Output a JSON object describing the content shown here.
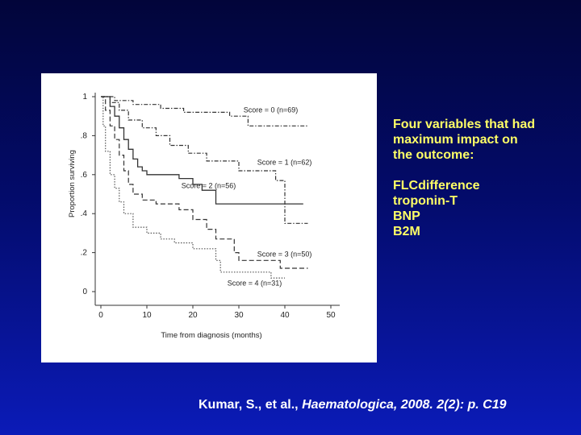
{
  "slide": {
    "text_block": {
      "heading_lines": [
        "Four variables that had",
        "maximum impact on",
        "the outcome:"
      ],
      "variables": [
        "FLCdifference",
        "troponin-T",
        "BNP",
        "B2M"
      ]
    },
    "citation": {
      "authors": "Kumar, S., et al.,",
      "journal_ref": "Haematologica, 2008. 2(2): p. C19"
    }
  },
  "chart_data": {
    "type": "line",
    "xlabel": "Time from diagnosis (months)",
    "ylabel": "Proportion surviving",
    "xlim": [
      0,
      50
    ],
    "ylim": [
      0,
      1
    ],
    "x_ticks": [
      "0",
      "10",
      "20",
      "30",
      "40",
      "50"
    ],
    "y_ticks": [
      "0",
      ".2",
      ".4",
      ".6",
      ".8",
      "1"
    ],
    "grid": false,
    "series": [
      {
        "name": "Score = 0 (n=69)",
        "style": "dash-dot",
        "color": "#333333",
        "points": [
          [
            0,
            1
          ],
          [
            3,
            1
          ],
          [
            3,
            0.98
          ],
          [
            7,
            0.98
          ],
          [
            7,
            0.96
          ],
          [
            13,
            0.96
          ],
          [
            13,
            0.94
          ],
          [
            18,
            0.94
          ],
          [
            18,
            0.92
          ],
          [
            28,
            0.92
          ],
          [
            28,
            0.9
          ],
          [
            32,
            0.9
          ],
          [
            32,
            0.85
          ],
          [
            45,
            0.85
          ]
        ]
      },
      {
        "name": "Score = 1 (n=62)",
        "style": "dash-dot",
        "color": "#333333",
        "points": [
          [
            0,
            1
          ],
          [
            2,
            1
          ],
          [
            2,
            0.97
          ],
          [
            4,
            0.97
          ],
          [
            4,
            0.93
          ],
          [
            6,
            0.93
          ],
          [
            6,
            0.88
          ],
          [
            9,
            0.88
          ],
          [
            9,
            0.84
          ],
          [
            12,
            0.84
          ],
          [
            12,
            0.8
          ],
          [
            15,
            0.8
          ],
          [
            15,
            0.75
          ],
          [
            19,
            0.75
          ],
          [
            19,
            0.71
          ],
          [
            23,
            0.71
          ],
          [
            23,
            0.67
          ],
          [
            30,
            0.67
          ],
          [
            30,
            0.62
          ],
          [
            38,
            0.62
          ],
          [
            38,
            0.57
          ],
          [
            40,
            0.57
          ],
          [
            40,
            0.35
          ],
          [
            45,
            0.35
          ]
        ]
      },
      {
        "name": "Score = 2 (n=56)",
        "style": "solid",
        "color": "#333333",
        "points": [
          [
            0,
            1
          ],
          [
            2,
            1
          ],
          [
            2,
            0.95
          ],
          [
            3,
            0.95
          ],
          [
            3,
            0.9
          ],
          [
            4,
            0.9
          ],
          [
            4,
            0.84
          ],
          [
            5,
            0.84
          ],
          [
            5,
            0.78
          ],
          [
            6,
            0.78
          ],
          [
            6,
            0.73
          ],
          [
            7,
            0.73
          ],
          [
            7,
            0.68
          ],
          [
            8,
            0.68
          ],
          [
            8,
            0.64
          ],
          [
            9,
            0.64
          ],
          [
            9,
            0.62
          ],
          [
            10,
            0.62
          ],
          [
            10,
            0.6
          ],
          [
            17,
            0.6
          ],
          [
            17,
            0.58
          ],
          [
            20,
            0.58
          ],
          [
            20,
            0.55
          ],
          [
            22,
            0.55
          ],
          [
            22,
            0.52
          ],
          [
            25,
            0.52
          ],
          [
            25,
            0.45
          ],
          [
            44,
            0.45
          ]
        ]
      },
      {
        "name": "Score = 3 (n=50)",
        "style": "dashed",
        "color": "#333333",
        "points": [
          [
            0,
            1
          ],
          [
            1,
            1
          ],
          [
            1,
            0.93
          ],
          [
            2,
            0.93
          ],
          [
            2,
            0.85
          ],
          [
            3,
            0.85
          ],
          [
            3,
            0.78
          ],
          [
            4,
            0.78
          ],
          [
            4,
            0.7
          ],
          [
            5,
            0.7
          ],
          [
            5,
            0.62
          ],
          [
            6,
            0.62
          ],
          [
            6,
            0.55
          ],
          [
            7,
            0.55
          ],
          [
            7,
            0.5
          ],
          [
            9,
            0.5
          ],
          [
            9,
            0.47
          ],
          [
            12,
            0.47
          ],
          [
            12,
            0.45
          ],
          [
            17,
            0.45
          ],
          [
            17,
            0.42
          ],
          [
            20,
            0.42
          ],
          [
            20,
            0.37
          ],
          [
            23,
            0.37
          ],
          [
            23,
            0.32
          ],
          [
            25,
            0.32
          ],
          [
            25,
            0.27
          ],
          [
            29,
            0.27
          ],
          [
            29,
            0.2
          ],
          [
            30,
            0.2
          ],
          [
            30,
            0.16
          ],
          [
            39,
            0.16
          ],
          [
            39,
            0.12
          ],
          [
            45,
            0.12
          ]
        ]
      },
      {
        "name": "Score = 4 (n=31)",
        "style": "dotted",
        "color": "#555555",
        "points": [
          [
            0,
            1
          ],
          [
            0.5,
            1
          ],
          [
            0.5,
            0.85
          ],
          [
            1,
            0.85
          ],
          [
            1,
            0.72
          ],
          [
            2,
            0.72
          ],
          [
            2,
            0.6
          ],
          [
            3,
            0.6
          ],
          [
            3,
            0.53
          ],
          [
            4,
            0.53
          ],
          [
            4,
            0.46
          ],
          [
            5,
            0.46
          ],
          [
            5,
            0.4
          ],
          [
            7,
            0.4
          ],
          [
            7,
            0.33
          ],
          [
            10,
            0.33
          ],
          [
            10,
            0.3
          ],
          [
            13,
            0.3
          ],
          [
            13,
            0.27
          ],
          [
            16,
            0.27
          ],
          [
            16,
            0.25
          ],
          [
            20,
            0.25
          ],
          [
            20,
            0.22
          ],
          [
            25,
            0.22
          ],
          [
            25,
            0.16
          ],
          [
            26,
            0.16
          ],
          [
            26,
            0.1
          ],
          [
            37,
            0.1
          ],
          [
            37,
            0.07
          ],
          [
            40,
            0.07
          ]
        ]
      }
    ],
    "annotations": [
      {
        "text": "Score = 0 (n=69)",
        "x": 31,
        "y": 0.92
      },
      {
        "text": "Score = 1 (n=62)",
        "x": 34,
        "y": 0.65
      },
      {
        "text": "Score = 2 (n=56)",
        "x": 17.5,
        "y": 0.53
      },
      {
        "text": "Score = 3 (n=50)",
        "x": 34,
        "y": 0.18
      },
      {
        "text": "Score = 4 (n=31)",
        "x": 27.5,
        "y": 0.03
      }
    ]
  }
}
